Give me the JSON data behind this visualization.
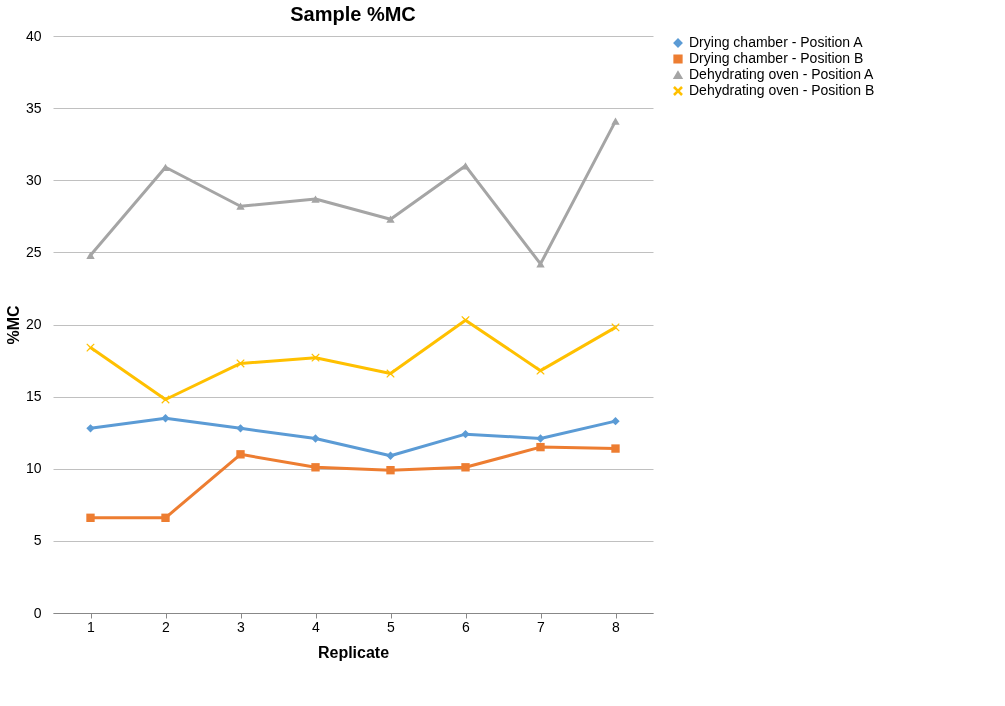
{
  "chart_data": {
    "type": "line",
    "title": "Sample %MC",
    "xlabel": "Replicate",
    "ylabel": "%MC",
    "categories": [
      "1",
      "2",
      "3",
      "4",
      "5",
      "6",
      "7",
      "8"
    ],
    "series": [
      {
        "name": "Drying chamber - Position A",
        "color": "#5b9bd5",
        "marker": "diamond",
        "values": [
          12.8,
          13.5,
          12.8,
          12.1,
          10.9,
          12.4,
          12.1,
          13.3
        ]
      },
      {
        "name": "Drying chamber - Position B",
        "color": "#ed7d31",
        "marker": "square",
        "values": [
          6.6,
          6.6,
          11.0,
          10.1,
          9.9,
          10.1,
          11.5,
          11.4
        ]
      },
      {
        "name": "Dehydrating oven - Position A",
        "color": "#a5a5a5",
        "marker": "triangle",
        "values": [
          24.8,
          30.9,
          28.2,
          28.7,
          27.3,
          31.0,
          24.2,
          34.1
        ]
      },
      {
        "name": "Dehydrating oven - Position B",
        "color": "#ffc000",
        "marker": "cross",
        "values": [
          18.4,
          14.8,
          17.3,
          17.7,
          16.6,
          20.3,
          16.8,
          19.8
        ]
      }
    ],
    "ylim": [
      0,
      40
    ],
    "yticks": [
      0,
      5,
      10,
      15,
      20,
      25,
      30,
      35,
      40
    ],
    "grid": "y",
    "legend": "right"
  }
}
